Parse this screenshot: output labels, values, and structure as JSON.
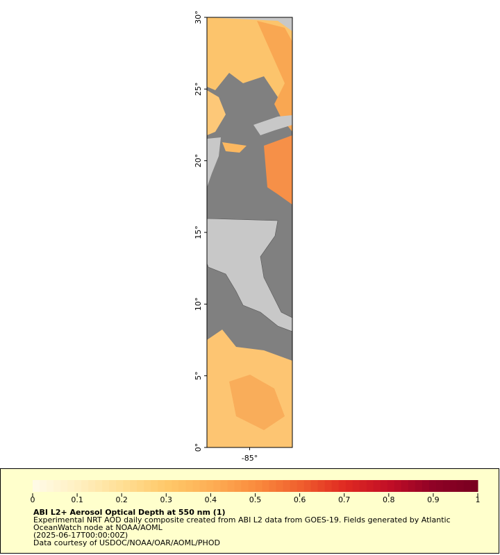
{
  "map": {
    "xlim": [
      -88,
      -82
    ],
    "ylim": [
      0,
      30
    ],
    "xticks": [
      {
        "value": -85,
        "label": "-85°"
      }
    ],
    "yticks": [
      {
        "value": 0,
        "label": "0°"
      },
      {
        "value": 5,
        "label": "5°"
      },
      {
        "value": 10,
        "label": "10°"
      },
      {
        "value": 15,
        "label": "15°"
      },
      {
        "value": 20,
        "label": "20°"
      },
      {
        "value": 25,
        "label": "25°"
      },
      {
        "value": 30,
        "label": "30°"
      }
    ]
  },
  "legend": {
    "range": [
      0,
      1
    ],
    "ticks": [
      0,
      0.1,
      0.2,
      0.3,
      0.4,
      0.5,
      0.6,
      0.7,
      0.8,
      0.9,
      1
    ],
    "colormap": [
      "#fffbe8",
      "#fff0c2",
      "#ffdf95",
      "#ffc96a",
      "#fdaf55",
      "#fa8c3e",
      "#f0602e",
      "#e02a22",
      "#c20f26",
      "#8f0226",
      "#78001f"
    ],
    "title": "ABI L2+ Aerosol Optical Depth at 550 nm (1)",
    "lines": [
      "Experimental NRT AOD daily composite created from ABI L2 data from GOES-19. Fields generated by Atlantic",
      "OceanWatch node at NOAA/AOML",
      "(2025-06-17T00:00:00Z)",
      "Data courtesy of USDOC/NOAA/OAR/AOML/PHOD"
    ]
  }
}
